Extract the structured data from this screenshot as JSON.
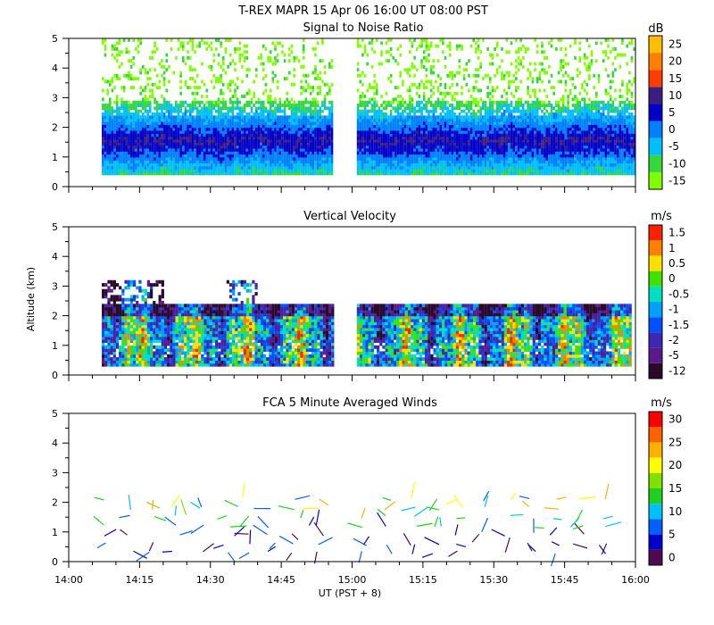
{
  "figure": {
    "title": "T-REX   MAPR 15 Apr 06   16:00 UT   08:00   PST",
    "xlabel": "UT  (PST + 8)",
    "ylabel": "Altitude (km)"
  },
  "chart_data": [
    {
      "type": "heatmap",
      "title": "Signal to Noise Ratio",
      "unit": "dB",
      "x_ticks": [
        "14:00",
        "14:15",
        "14:30",
        "14:45",
        "15:00",
        "15:15",
        "15:30",
        "15:45",
        "16:00"
      ],
      "xlim_minutes": [
        0,
        120
      ],
      "y_ticks": [
        0,
        1,
        2,
        3,
        4,
        5
      ],
      "ylim": [
        0,
        5
      ],
      "colorbar": [
        -15,
        -10,
        -5,
        0,
        5,
        10,
        15,
        20,
        25
      ],
      "colors": [
        "#7fff00",
        "#35d83c",
        "#00bfff",
        "#0080ff",
        "#0000c8",
        "#3c1e82",
        "#ff3c00",
        "#ff7f00",
        "#ffbf00"
      ],
      "data_gaps_minutes": [
        [
          0,
          7
        ],
        [
          56,
          61
        ],
        [
          120,
          120
        ]
      ],
      "profile_band_km": {
        "low_noise_floor": 0.4,
        "peak_altitude": 1.55,
        "peak_snr_db": 10
      }
    },
    {
      "type": "heatmap",
      "title": "Vertical Velocity",
      "unit": "m/s",
      "x_ticks": [
        "14:00",
        "14:15",
        "14:30",
        "14:45",
        "15:00",
        "15:15",
        "15:30",
        "15:45",
        "16:00"
      ],
      "y_ticks": [
        0,
        1,
        2,
        3,
        4,
        5
      ],
      "ylim": [
        0,
        5
      ],
      "colorbar": [
        -12,
        -5,
        -2,
        -1.5,
        -1,
        -0.5,
        0,
        0.5,
        1,
        1.5
      ],
      "colors": [
        "#2a0a2a",
        "#5a1a8c",
        "#3c28b4",
        "#0050ff",
        "#00a0ff",
        "#00e0c0",
        "#40e000",
        "#ffe000",
        "#ff8000",
        "#ff2000"
      ],
      "data_range_km": [
        0.4,
        2.5
      ]
    },
    {
      "type": "scatter",
      "title": "FCA 5 Minute Averaged Winds",
      "unit": "m/s",
      "x_ticks": [
        "14:00",
        "14:15",
        "14:30",
        "14:45",
        "15:00",
        "15:15",
        "15:30",
        "15:45",
        "16:00"
      ],
      "y_ticks": [
        0,
        1,
        2,
        3,
        4,
        5
      ],
      "ylim": [
        0,
        5
      ],
      "colorbar": [
        0,
        5,
        10,
        15,
        20,
        25,
        30
      ],
      "colors": [
        "#500a50",
        "#0000c8",
        "#0060ff",
        "#00c0ff",
        "#20d020",
        "#80e000",
        "#ffff00",
        "#ffb000",
        "#ff6000",
        "#ff0000"
      ],
      "altitudes_km": [
        0.3,
        0.6,
        0.9,
        1.2,
        1.5,
        1.8,
        2.1
      ],
      "times_minutes": [
        8,
        13,
        18,
        23,
        28,
        33,
        38,
        43,
        48,
        53,
        63,
        68,
        73,
        78,
        83,
        88,
        93,
        98,
        103,
        108,
        113
      ]
    }
  ]
}
